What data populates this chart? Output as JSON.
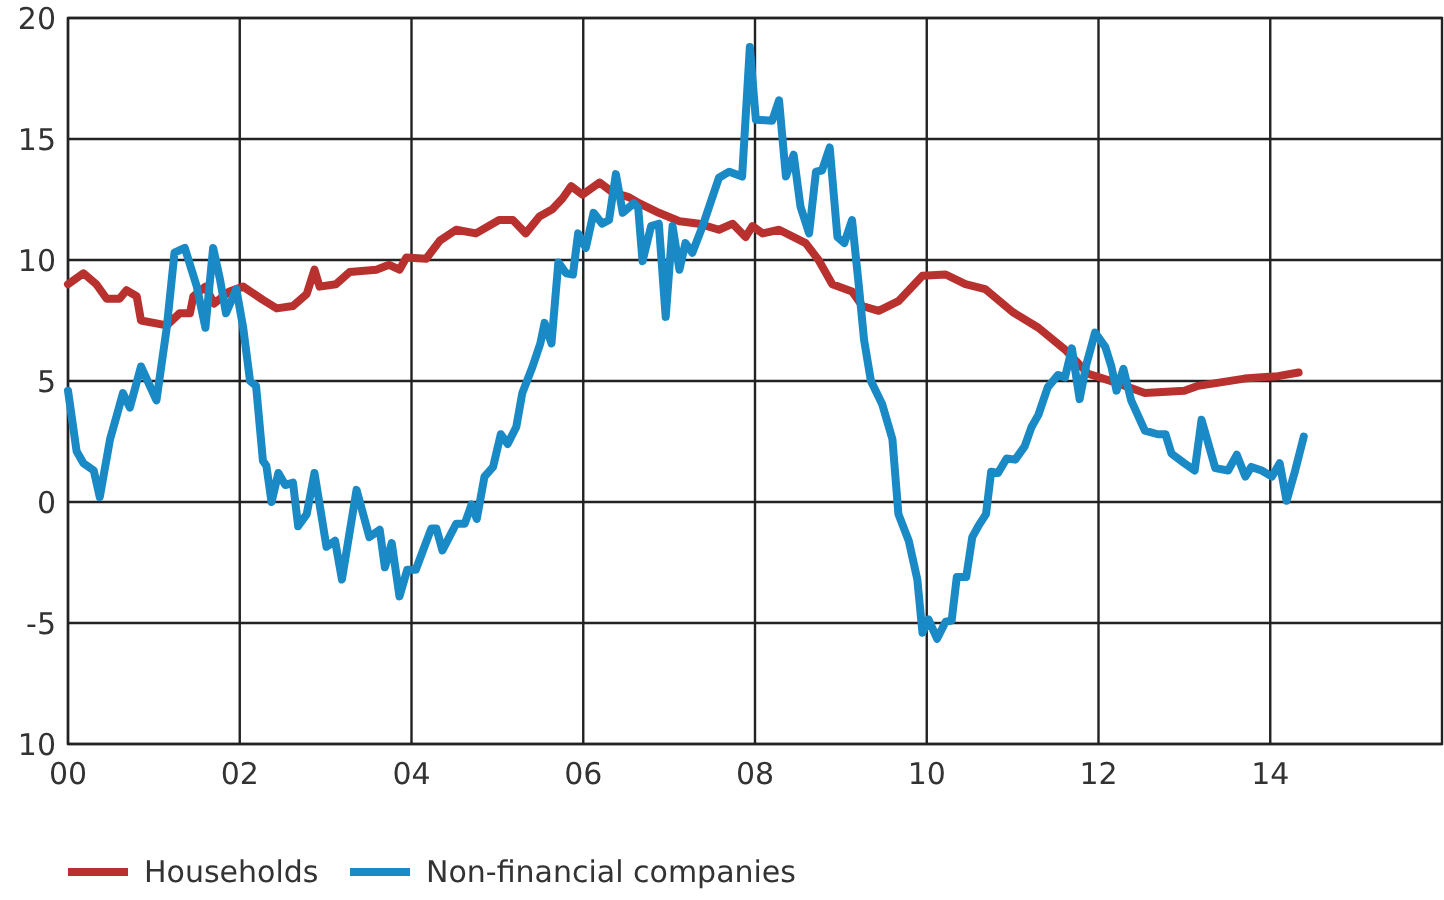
{
  "chart_data": {
    "type": "line",
    "xlim": [
      2000,
      2016
    ],
    "xticks": [
      {
        "value": 2000,
        "label": "00"
      },
      {
        "value": 2002,
        "label": "02"
      },
      {
        "value": 2004,
        "label": "04"
      },
      {
        "value": 2006,
        "label": "06"
      },
      {
        "value": 2008,
        "label": "08"
      },
      {
        "value": 2010,
        "label": "10"
      },
      {
        "value": 2012,
        "label": "12"
      },
      {
        "value": 2014,
        "label": "14"
      }
    ],
    "ylim": [
      -10,
      20
    ],
    "yticks": [
      {
        "value": -10,
        "label": "10"
      },
      -5,
      0,
      5,
      10,
      15,
      20
    ],
    "grid": true,
    "legend": "bottom",
    "marker": "none",
    "line_style": "solid",
    "series": [
      {
        "name": "Households",
        "color": "#b8312f",
        "x": [
          2000.0,
          2000.18,
          2000.33,
          2000.45,
          2000.6,
          2000.68,
          2000.8,
          2000.85,
          2001.15,
          2001.3,
          2001.42,
          2001.46,
          2001.6,
          2001.7,
          2001.88,
          2002.04,
          2002.27,
          2002.43,
          2002.62,
          2002.78,
          2002.87,
          2002.93,
          2003.12,
          2003.28,
          2003.59,
          2003.74,
          2003.86,
          2003.94,
          2004.17,
          2004.33,
          2004.52,
          2004.75,
          2005.02,
          2005.18,
          2005.33,
          2005.49,
          2005.64,
          2005.76,
          2005.86,
          2005.99,
          2006.19,
          2006.34,
          2006.53,
          2006.65,
          2006.88,
          2007.12,
          2007.35,
          2007.58,
          2007.74,
          2007.89,
          2007.97,
          2008.09,
          2008.28,
          2008.59,
          2008.74,
          2008.9,
          2009.13,
          2009.25,
          2009.44,
          2009.67,
          2009.95,
          2010.22,
          2010.45,
          2010.68,
          2011.0,
          2011.3,
          2011.61,
          2011.88,
          2012.23,
          2012.54,
          2013.0,
          2013.16,
          2013.7,
          2014.09,
          2014.33
        ],
        "values": [
          9.0,
          9.45,
          9.0,
          8.4,
          8.4,
          8.75,
          8.5,
          7.5,
          7.3,
          7.8,
          7.8,
          8.5,
          8.9,
          8.2,
          8.7,
          8.9,
          8.35,
          8.0,
          8.1,
          8.6,
          9.6,
          8.9,
          9.0,
          9.5,
          9.6,
          9.8,
          9.6,
          10.1,
          10.05,
          10.8,
          11.25,
          11.1,
          11.65,
          11.65,
          11.1,
          11.8,
          12.1,
          12.55,
          13.05,
          12.7,
          13.2,
          12.8,
          12.6,
          12.35,
          11.95,
          11.6,
          11.5,
          11.25,
          11.5,
          10.95,
          11.4,
          11.1,
          11.25,
          10.7,
          10.0,
          9.0,
          8.7,
          8.1,
          7.9,
          8.3,
          9.35,
          9.4,
          9.0,
          8.8,
          7.85,
          7.2,
          6.3,
          5.3,
          4.9,
          4.5,
          4.6,
          4.8,
          5.1,
          5.2,
          5.35
        ]
      },
      {
        "name": "Non-financial companies",
        "color": "#1a8ac6",
        "x": [
          2000.0,
          2000.1,
          2000.18,
          2000.3,
          2000.37,
          2000.49,
          2000.57,
          2000.64,
          2000.72,
          2000.85,
          2001.03,
          2001.15,
          2001.24,
          2001.36,
          2001.5,
          2001.6,
          2001.69,
          2001.77,
          2001.84,
          2001.96,
          2002.04,
          2002.12,
          2002.19,
          2002.27,
          2002.31,
          2002.37,
          2002.45,
          2002.53,
          2002.62,
          2002.68,
          2002.78,
          2002.87,
          2003.01,
          2003.11,
          2003.19,
          2003.36,
          2003.51,
          2003.63,
          2003.69,
          2003.77,
          2003.86,
          2003.95,
          2004.05,
          2004.23,
          2004.29,
          2004.36,
          2004.52,
          2004.62,
          2004.7,
          2004.76,
          2004.85,
          2004.95,
          2005.04,
          2005.12,
          2005.22,
          2005.29,
          2005.41,
          2005.5,
          2005.55,
          2005.63,
          2005.71,
          2005.8,
          2005.88,
          2005.94,
          2006.03,
          2006.12,
          2006.22,
          2006.3,
          2006.38,
          2006.46,
          2006.59,
          2006.64,
          2006.69,
          2006.79,
          2006.88,
          2006.96,
          2007.04,
          2007.12,
          2007.19,
          2007.27,
          2007.39,
          2007.58,
          2007.7,
          2007.85,
          2007.94,
          2008.01,
          2008.2,
          2008.28,
          2008.36,
          2008.45,
          2008.53,
          2008.63,
          2008.71,
          2008.78,
          2008.87,
          2008.96,
          2009.04,
          2009.13,
          2009.21,
          2009.27,
          2009.35,
          2009.48,
          2009.6,
          2009.67,
          2009.79,
          2009.89,
          2009.95,
          2010.02,
          2010.12,
          2010.22,
          2010.29,
          2010.35,
          2010.46,
          2010.53,
          2010.6,
          2010.69,
          2010.75,
          2010.83,
          2010.93,
          2011.03,
          2011.14,
          2011.22,
          2011.3,
          2011.41,
          2011.53,
          2011.61,
          2011.69,
          2011.78,
          2011.86,
          2011.96,
          2012.08,
          2012.15,
          2012.21,
          2012.29,
          2012.38,
          2012.54,
          2012.69,
          2012.78,
          2012.85,
          2013.0,
          2013.12,
          2013.2,
          2013.36,
          2013.51,
          2013.61,
          2013.71,
          2013.78,
          2013.9,
          2014.02,
          2014.11,
          2014.19,
          2014.29,
          2014.39
        ],
        "values": [
          4.6,
          2.1,
          1.6,
          1.3,
          0.2,
          2.6,
          3.6,
          4.5,
          3.9,
          5.6,
          4.2,
          7.2,
          10.3,
          10.5,
          8.9,
          7.2,
          10.5,
          9.2,
          7.8,
          8.8,
          7.2,
          5.0,
          4.8,
          1.7,
          1.5,
          0.0,
          1.2,
          0.7,
          0.8,
          -1.0,
          -0.5,
          1.2,
          -1.85,
          -1.6,
          -3.2,
          0.5,
          -1.45,
          -1.15,
          -2.7,
          -1.7,
          -3.9,
          -2.8,
          -2.8,
          -1.1,
          -1.1,
          -2.0,
          -0.9,
          -0.9,
          -0.1,
          -0.7,
          1.05,
          1.45,
          2.8,
          2.4,
          3.1,
          4.5,
          5.6,
          6.55,
          7.4,
          6.55,
          9.9,
          9.45,
          9.4,
          11.1,
          10.5,
          11.95,
          11.5,
          11.65,
          13.55,
          11.95,
          12.35,
          12.15,
          9.95,
          11.4,
          11.5,
          7.65,
          11.4,
          9.6,
          10.7,
          10.3,
          11.4,
          13.4,
          13.65,
          13.45,
          18.8,
          15.8,
          15.75,
          16.6,
          13.45,
          14.35,
          12.2,
          11.1,
          13.65,
          13.7,
          14.65,
          10.95,
          10.7,
          11.65,
          8.9,
          6.7,
          5.0,
          4.05,
          2.6,
          -0.5,
          -1.6,
          -3.2,
          -5.4,
          -4.85,
          -5.65,
          -4.95,
          -4.9,
          -3.1,
          -3.1,
          -1.45,
          -1.0,
          -0.5,
          1.25,
          1.2,
          1.8,
          1.75,
          2.3,
          3.1,
          3.6,
          4.75,
          5.25,
          5.15,
          6.35,
          4.25,
          5.7,
          7.0,
          6.4,
          5.6,
          4.6,
          5.5,
          4.2,
          2.95,
          2.8,
          2.8,
          2.0,
          1.6,
          1.3,
          3.4,
          1.4,
          1.3,
          1.95,
          1.05,
          1.45,
          1.3,
          1.05,
          1.6,
          0.05,
          1.3,
          2.7
        ]
      }
    ]
  }
}
